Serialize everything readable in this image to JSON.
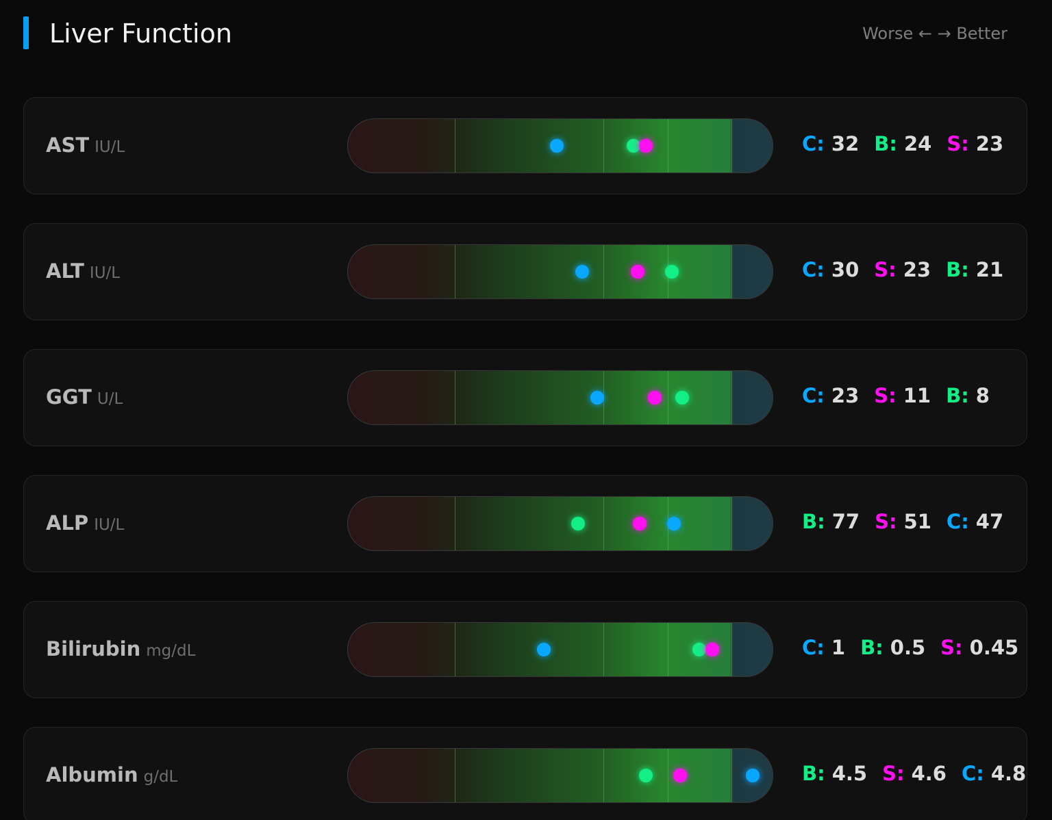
{
  "title": "Liver Function",
  "direction_hint": "Worse ← → Better",
  "series_colors": {
    "C": "#0aa7ff",
    "B": "#13ef86",
    "S": "#ff10f0"
  },
  "metrics": [
    {
      "name": "AST",
      "unit": "IU/L",
      "marker_scale_positions": {
        "C": 0.49,
        "B": 0.67,
        "S": 0.7
      },
      "values": [
        {
          "key": "C:",
          "series": "C",
          "value": "32"
        },
        {
          "key": "B:",
          "series": "B",
          "value": "24"
        },
        {
          "key": "S:",
          "series": "S",
          "value": "23"
        }
      ]
    },
    {
      "name": "ALT",
      "unit": "IU/L",
      "marker_scale_positions": {
        "C": 0.55,
        "S": 0.68,
        "B": 0.76
      },
      "values": [
        {
          "key": "C:",
          "series": "C",
          "value": "30"
        },
        {
          "key": "S:",
          "series": "S",
          "value": "23"
        },
        {
          "key": "B:",
          "series": "B",
          "value": "21"
        }
      ]
    },
    {
      "name": "GGT",
      "unit": "U/L",
      "marker_scale_positions": {
        "C": 0.585,
        "S": 0.72,
        "B": 0.785
      },
      "values": [
        {
          "key": "C:",
          "series": "C",
          "value": "23"
        },
        {
          "key": "S:",
          "series": "S",
          "value": "11"
        },
        {
          "key": "B:",
          "series": "B",
          "value": "8"
        }
      ]
    },
    {
      "name": "ALP",
      "unit": "IU/L",
      "marker_scale_positions": {
        "B": 0.54,
        "S": 0.685,
        "C": 0.765
      },
      "values": [
        {
          "key": "B:",
          "series": "B",
          "value": "77"
        },
        {
          "key": "S:",
          "series": "S",
          "value": "51"
        },
        {
          "key": "C:",
          "series": "C",
          "value": "47"
        }
      ]
    },
    {
      "name": "Bilirubin",
      "unit": "mg/dL",
      "marker_scale_positions": {
        "C": 0.46,
        "B": 0.825,
        "S": 0.855
      },
      "values": [
        {
          "key": "C:",
          "series": "C",
          "value": "1"
        },
        {
          "key": "B:",
          "series": "B",
          "value": "0.5"
        },
        {
          "key": "S:",
          "series": "S",
          "value": "0.45"
        }
      ]
    },
    {
      "name": "Albumin",
      "unit": "g/dL",
      "marker_scale_positions": {
        "B": 0.7,
        "S": 0.78,
        "C": 0.95
      },
      "values": [
        {
          "key": "B:",
          "series": "B",
          "value": "4.5"
        },
        {
          "key": "S:",
          "series": "S",
          "value": "4.6"
        },
        {
          "key": "C:",
          "series": "C",
          "value": "4.8"
        }
      ]
    }
  ]
}
